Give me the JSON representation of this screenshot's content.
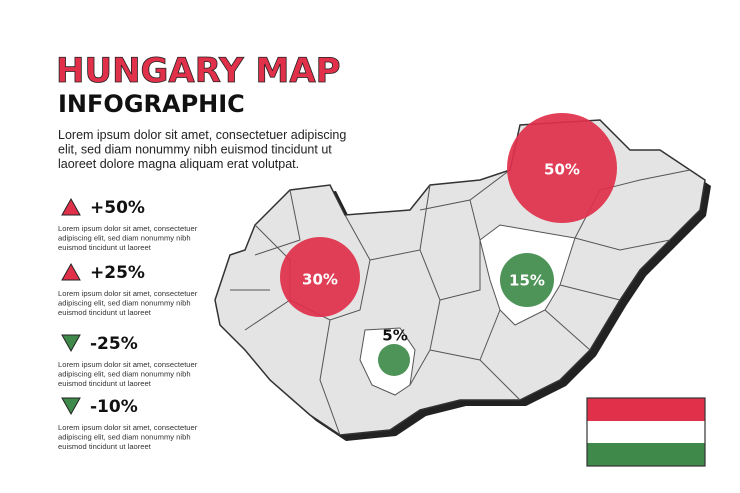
{
  "header": {
    "title": "HUNGARY MAP",
    "subtitle": "INFOGRAPHIC",
    "description": [
      "Lorem ipsum dolor sit amet, consectetuer adipiscing",
      "elit, sed diam nonummy nibh euismod tincidunt ut",
      "laoreet dolore magna aliquam erat volutpat."
    ]
  },
  "stats": [
    {
      "direction": "up",
      "label": "+50%",
      "text": [
        "Lorem ipsum dolor sit amet, consectetuer",
        "adipiscing elit, sed diam nonummy nibh",
        "euismod tincidunt ut laoreet"
      ]
    },
    {
      "direction": "up",
      "label": "+25%",
      "text": [
        "Lorem ipsum dolor sit amet, consectetuer",
        "adipiscing elit, sed diam nonummy nibh",
        "euismod tincidunt ut laoreet"
      ]
    },
    {
      "direction": "down",
      "label": "-25%",
      "text": [
        "Lorem ipsum dolor sit amet, consectetuer",
        "adipiscing elit, sed diam nonummy nibh",
        "euismod tincidunt ut laoreet"
      ]
    },
    {
      "direction": "down",
      "label": "-10%",
      "text": [
        "Lorem ipsum dolor sit amet, consectetuer",
        "adipiscing elit, sed diam nonummy nibh",
        "euismod tincidunt ut laoreet"
      ]
    }
  ],
  "map": {
    "markers": [
      {
        "label": "50%",
        "color": "#e0304a"
      },
      {
        "label": "30%",
        "color": "#e0304a"
      },
      {
        "label": "15%",
        "color": "#3f8a4a"
      },
      {
        "label": "5%",
        "color": "#3f8a4a"
      }
    ]
  }
}
